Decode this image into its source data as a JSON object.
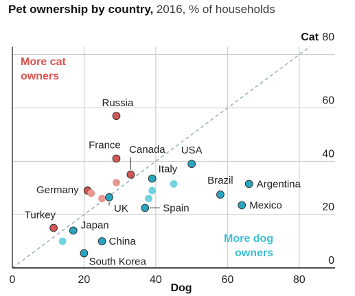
{
  "header": {
    "title": "Pet ownership by country,",
    "subtitle": "2016, % of households"
  },
  "chart_data": {
    "type": "scatter",
    "title": "Pet ownership by country,",
    "subtitle": "2016, % of households",
    "xlabel": "Dog",
    "ylabel": "Cat",
    "xlim": [
      0,
      90
    ],
    "ylim": [
      0,
      83
    ],
    "x_ticks": [
      0,
      20,
      40,
      60,
      80
    ],
    "y_ticks": [
      0,
      20,
      40,
      60,
      80
    ],
    "grid": true,
    "reference_line": "x = y",
    "region_labels": [
      {
        "text": "More cat owners",
        "lines": [
          "More cat",
          "owners"
        ],
        "color": "#d9534f"
      },
      {
        "text": "More dog owners",
        "lines": [
          "More dog",
          "owners"
        ],
        "color": "#3cbfd1"
      }
    ],
    "colors": {
      "cat_labeled": "#cf5a55",
      "cat_unlabeled": "#e89690",
      "dog_labeled": "#2aa5c0",
      "dog_unlabeled": "#6fd3e0",
      "grid": "#c6c6c6",
      "reference_line": "#9fb3bd"
    },
    "series": [
      {
        "group": "more-cat",
        "points": [
          {
            "label": "Russia",
            "x": 29,
            "y": 57
          },
          {
            "label": "France",
            "x": 29,
            "y": 41
          },
          {
            "label": "Canada",
            "x": 33,
            "y": 35
          },
          {
            "label": "Germany",
            "x": 21,
            "y": 29
          },
          {
            "label": "Turkey",
            "x": 11.5,
            "y": 15
          },
          {
            "label": "",
            "x": 29,
            "y": 32
          },
          {
            "label": "",
            "x": 22,
            "y": 28
          },
          {
            "label": "",
            "x": 25,
            "y": 26
          }
        ]
      },
      {
        "group": "more-dog",
        "points": [
          {
            "label": "USA",
            "x": 50,
            "y": 39
          },
          {
            "label": "Italy",
            "x": 39,
            "y": 33.5
          },
          {
            "label": "Brazil",
            "x": 58,
            "y": 27.5
          },
          {
            "label": "Argentina",
            "x": 66,
            "y": 31.5
          },
          {
            "label": "Mexico",
            "x": 64,
            "y": 23.5
          },
          {
            "label": "Spain",
            "x": 37,
            "y": 22.5
          },
          {
            "label": "UK",
            "x": 27,
            "y": 26.5
          },
          {
            "label": "Japan",
            "x": 17,
            "y": 14
          },
          {
            "label": "China",
            "x": 25,
            "y": 10
          },
          {
            "label": "South Korea",
            "x": 20,
            "y": 5.5
          },
          {
            "label": "",
            "x": 45,
            "y": 31.5
          },
          {
            "label": "",
            "x": 39,
            "y": 29
          },
          {
            "label": "",
            "x": 38,
            "y": 26
          },
          {
            "label": "",
            "x": 14,
            "y": 10
          }
        ]
      }
    ]
  }
}
